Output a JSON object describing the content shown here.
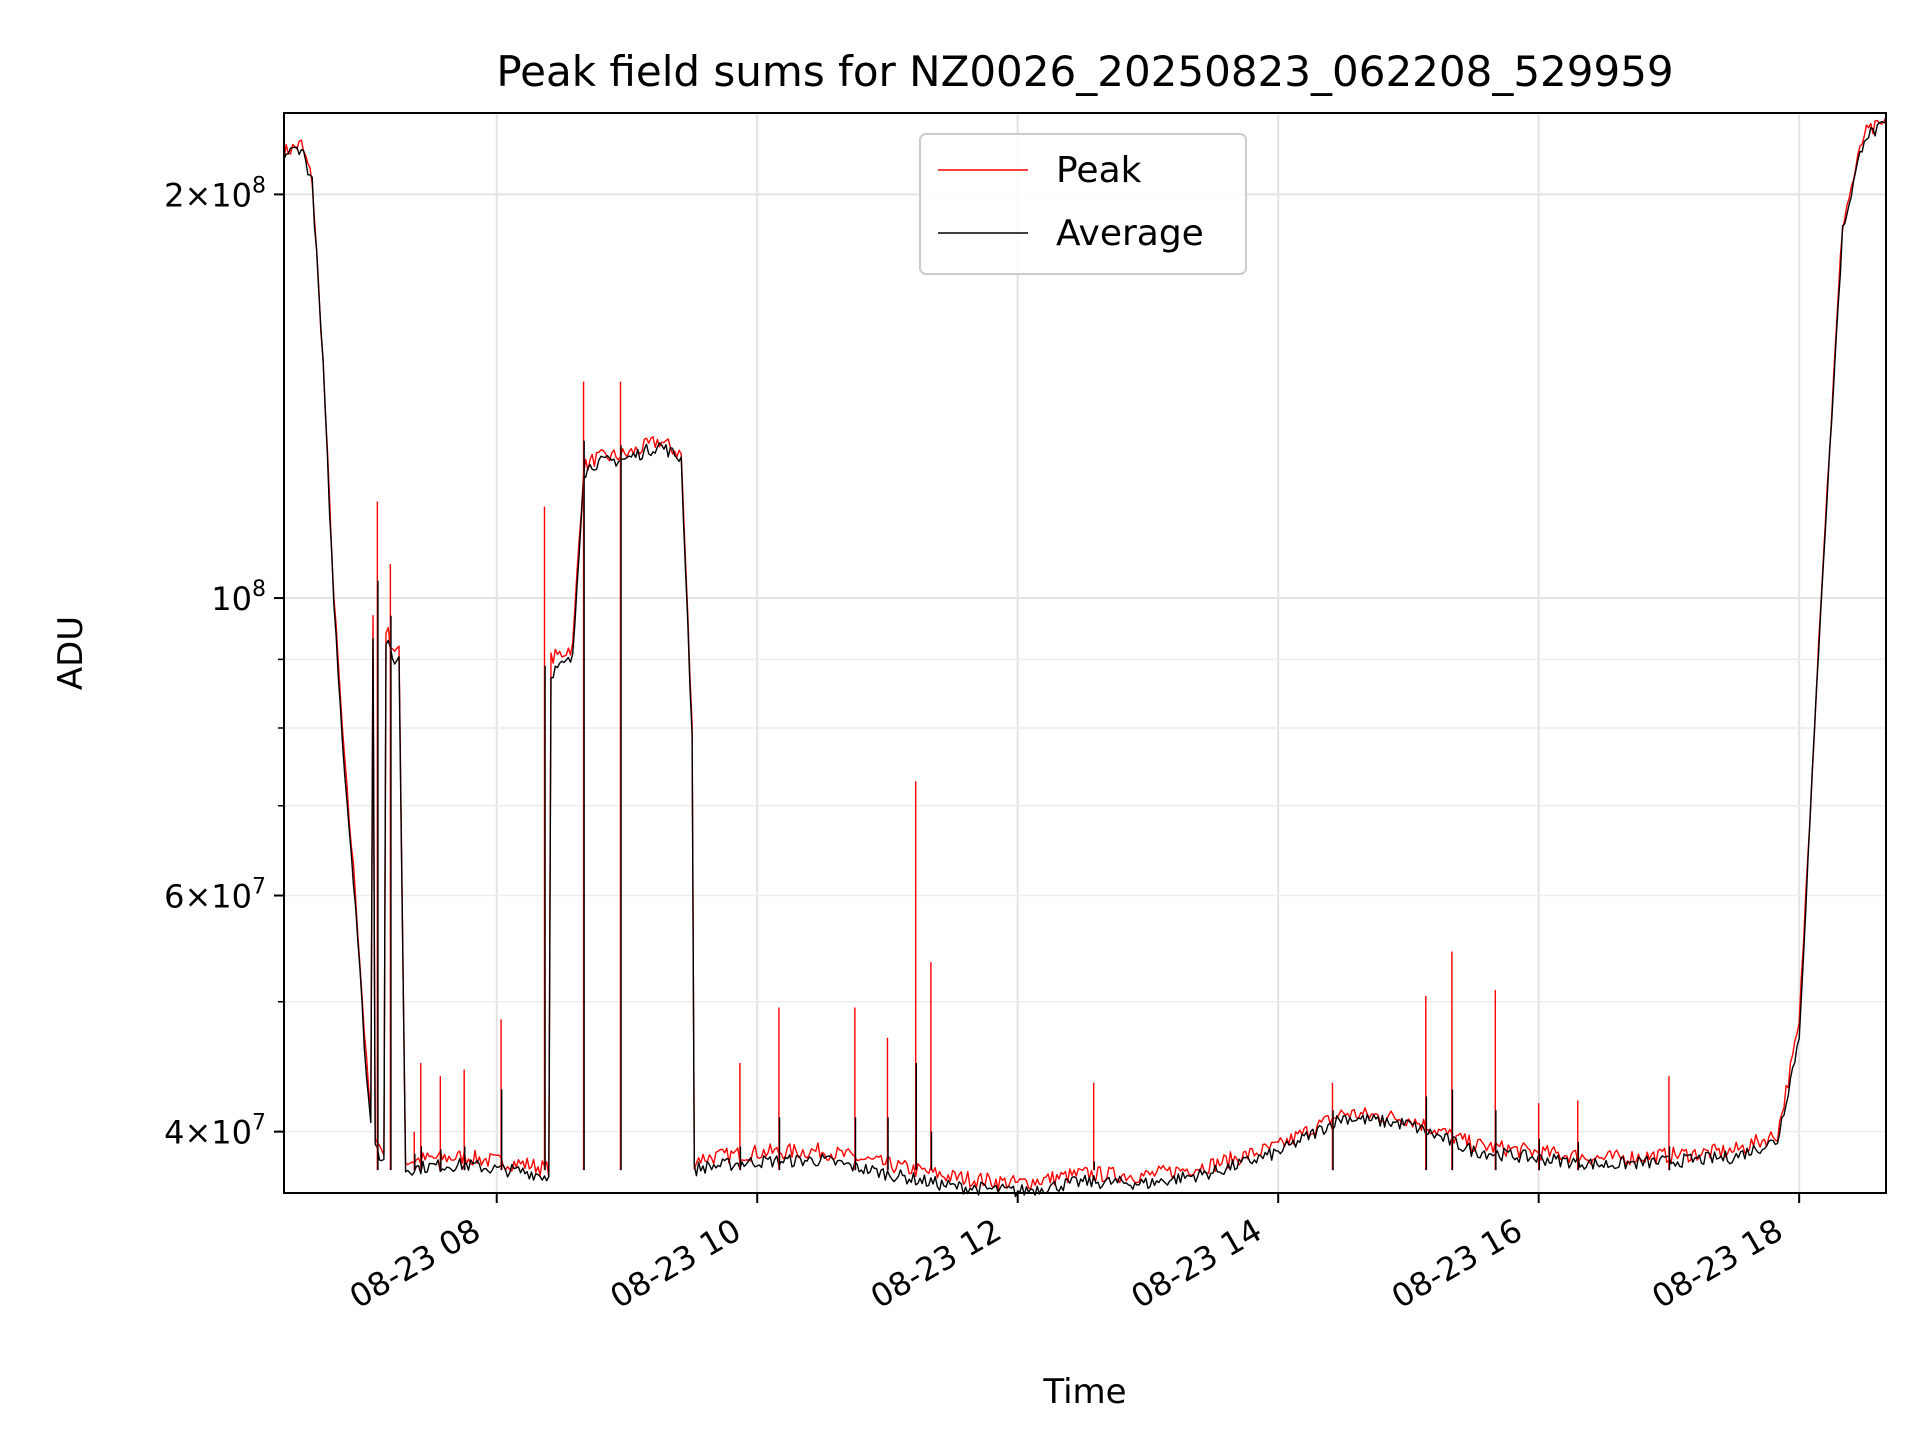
{
  "chart_data": {
    "type": "line",
    "title": "Peak field sums for NZ0026_20250823_062208_529959",
    "xlabel": "Time",
    "ylabel": "ADU",
    "y_scale": "log",
    "grid": true,
    "legend_position": "top-center",
    "xlim": [
      "2025-08-23 06:22",
      "2025-08-23 18:40"
    ],
    "ylim": [
      36000000,
      230000000
    ],
    "x_ticks": [
      {
        "t": "2025-08-23 08:00",
        "label": "08-23 08"
      },
      {
        "t": "2025-08-23 10:00",
        "label": "08-23 10"
      },
      {
        "t": "2025-08-23 12:00",
        "label": "08-23 12"
      },
      {
        "t": "2025-08-23 14:00",
        "label": "08-23 14"
      },
      {
        "t": "2025-08-23 16:00",
        "label": "08-23 16"
      },
      {
        "t": "2025-08-23 18:00",
        "label": "08-23 18"
      }
    ],
    "y_ticks": [
      {
        "value": 40000000,
        "mantissa": "4",
        "base": "10",
        "exponent": "7"
      },
      {
        "value": 60000000,
        "mantissa": "6",
        "base": "10",
        "exponent": "7"
      },
      {
        "value": 100000000,
        "mantissa": "",
        "base": "10",
        "exponent": "8"
      },
      {
        "value": 200000000,
        "mantissa": "2",
        "base": "10",
        "exponent": "8"
      }
    ],
    "series": [
      {
        "name": "Peak",
        "color": "#ff0000",
        "x": [
          "2025-08-23 06:22",
          "2025-08-23 06:30",
          "2025-08-23 06:35",
          "2025-08-23 06:40",
          "2025-08-23 06:45",
          "2025-08-23 06:50",
          "2025-08-23 06:55",
          "2025-08-23 07:00",
          "2025-08-23 07:02",
          "2025-08-23 07:03",
          "2025-08-23 07:04",
          "2025-08-23 07:06",
          "2025-08-23 07:08",
          "2025-08-23 07:09",
          "2025-08-23 07:12",
          "2025-08-23 07:15",
          "2025-08-23 07:18",
          "2025-08-23 07:30",
          "2025-08-23 07:45",
          "2025-08-23 08:00",
          "2025-08-23 08:15",
          "2025-08-23 08:24",
          "2025-08-23 08:25",
          "2025-08-23 08:35",
          "2025-08-23 08:40",
          "2025-08-23 08:45",
          "2025-08-23 09:00",
          "2025-08-23 09:15",
          "2025-08-23 09:25",
          "2025-08-23 09:30",
          "2025-08-23 09:31",
          "2025-08-23 09:33",
          "2025-08-23 10:00",
          "2025-08-23 10:30",
          "2025-08-23 11:00",
          "2025-08-23 11:30",
          "2025-08-23 12:00",
          "2025-08-23 12:30",
          "2025-08-23 13:00",
          "2025-08-23 13:30",
          "2025-08-23 14:00",
          "2025-08-23 14:30",
          "2025-08-23 15:00",
          "2025-08-23 15:30",
          "2025-08-23 16:00",
          "2025-08-23 16:30",
          "2025-08-23 17:00",
          "2025-08-23 17:30",
          "2025-08-23 17:50",
          "2025-08-23 18:00",
          "2025-08-23 18:10",
          "2025-08-23 18:20",
          "2025-08-23 18:30",
          "2025-08-23 18:40"
        ],
        "y": [
          215000000,
          218000000,
          205000000,
          150000000,
          100000000,
          75000000,
          60000000,
          45000000,
          41000000,
          96000000,
          40000000,
          39000000,
          38500000,
          95000000,
          92000000,
          91000000,
          38000000,
          38200000,
          38300000,
          38000000,
          37800000,
          37500000,
          90000000,
          92000000,
          125000000,
          127000000,
          128000000,
          131000000,
          128000000,
          80000000,
          38000000,
          38200000,
          38600000,
          38700000,
          37800000,
          37000000,
          36600000,
          37200000,
          37100000,
          37800000,
          39000000,
          41300000,
          40900000,
          39100000,
          38600000,
          38200000,
          38400000,
          38700000,
          39800000,
          48000000,
          100000000,
          190000000,
          222000000,
          226000000
        ]
      },
      {
        "name": "Average",
        "color": "#000000",
        "x": [
          "2025-08-23 06:22",
          "2025-08-23 06:30",
          "2025-08-23 06:35",
          "2025-08-23 06:40",
          "2025-08-23 06:45",
          "2025-08-23 06:50",
          "2025-08-23 06:55",
          "2025-08-23 07:00",
          "2025-08-23 07:02",
          "2025-08-23 07:03",
          "2025-08-23 07:04",
          "2025-08-23 07:06",
          "2025-08-23 07:08",
          "2025-08-23 07:09",
          "2025-08-23 07:12",
          "2025-08-23 07:15",
          "2025-08-23 07:18",
          "2025-08-23 07:30",
          "2025-08-23 07:45",
          "2025-08-23 08:00",
          "2025-08-23 08:15",
          "2025-08-23 08:24",
          "2025-08-23 08:25",
          "2025-08-23 08:35",
          "2025-08-23 08:40",
          "2025-08-23 08:45",
          "2025-08-23 09:00",
          "2025-08-23 09:15",
          "2025-08-23 09:25",
          "2025-08-23 09:30",
          "2025-08-23 09:31",
          "2025-08-23 09:33",
          "2025-08-23 10:00",
          "2025-08-23 10:30",
          "2025-08-23 11:00",
          "2025-08-23 11:30",
          "2025-08-23 12:00",
          "2025-08-23 12:30",
          "2025-08-23 13:00",
          "2025-08-23 13:30",
          "2025-08-23 14:00",
          "2025-08-23 14:30",
          "2025-08-23 15:00",
          "2025-08-23 15:30",
          "2025-08-23 16:00",
          "2025-08-23 16:30",
          "2025-08-23 17:00",
          "2025-08-23 17:30",
          "2025-08-23 17:50",
          "2025-08-23 18:00",
          "2025-08-23 18:10",
          "2025-08-23 18:20",
          "2025-08-23 18:30",
          "2025-08-23 18:40"
        ],
        "y": [
          214000000,
          217000000,
          204000000,
          149000000,
          99000000,
          74000000,
          59000000,
          44000000,
          40500000,
          94000000,
          39500000,
          38500000,
          38000000,
          93000000,
          90000000,
          90000000,
          37500000,
          37700000,
          37800000,
          37500000,
          37300000,
          37000000,
          88000000,
          90000000,
          124000000,
          126000000,
          127000000,
          130000000,
          127000000,
          79000000,
          37400000,
          37600000,
          38000000,
          38100000,
          37200000,
          36400000,
          36100000,
          36700000,
          36600000,
          37300000,
          38600000,
          41000000,
          40500000,
          38700000,
          38200000,
          37800000,
          38000000,
          38300000,
          39400000,
          47000000,
          99000000,
          188000000,
          221000000,
          225000000
        ]
      }
    ],
    "peak_spikes": [
      {
        "t": "2025-08-23 07:05",
        "peak": 118000000,
        "avg": 103000000
      },
      {
        "t": "2025-08-23 07:11",
        "peak": 106000000,
        "avg": 97000000
      },
      {
        "t": "2025-08-23 07:22",
        "peak": 40000000,
        "avg": 38500000
      },
      {
        "t": "2025-08-23 07:25",
        "peak": 45000000,
        "avg": 39000000
      },
      {
        "t": "2025-08-23 07:34",
        "peak": 44000000,
        "avg": 38800000
      },
      {
        "t": "2025-08-23 07:45",
        "peak": 44500000,
        "avg": 39000000
      },
      {
        "t": "2025-08-23 08:02",
        "peak": 48500000,
        "avg": 43000000
      },
      {
        "t": "2025-08-23 08:22",
        "peak": 117000000,
        "avg": 89000000
      },
      {
        "t": "2025-08-23 08:40",
        "peak": 145000000,
        "avg": 131000000
      },
      {
        "t": "2025-08-23 08:57",
        "peak": 145000000,
        "avg": 130000000
      },
      {
        "t": "2025-08-23 09:52",
        "peak": 45000000,
        "avg": 39000000
      },
      {
        "t": "2025-08-23 10:10",
        "peak": 49500000,
        "avg": 41000000
      },
      {
        "t": "2025-08-23 10:45",
        "peak": 49500000,
        "avg": 41000000
      },
      {
        "t": "2025-08-23 11:00",
        "peak": 47000000,
        "avg": 41000000
      },
      {
        "t": "2025-08-23 11:13",
        "peak": 73000000,
        "avg": 45000000
      },
      {
        "t": "2025-08-23 11:20",
        "peak": 53500000,
        "avg": 40000000
      },
      {
        "t": "2025-08-23 12:35",
        "peak": 43500000,
        "avg": 38000000
      },
      {
        "t": "2025-08-23 14:25",
        "peak": 43500000,
        "avg": 41500000
      },
      {
        "t": "2025-08-23 15:08",
        "peak": 50500000,
        "avg": 42500000
      },
      {
        "t": "2025-08-23 15:20",
        "peak": 54500000,
        "avg": 43000000
      },
      {
        "t": "2025-08-23 15:40",
        "peak": 51000000,
        "avg": 41500000
      },
      {
        "t": "2025-08-23 16:00",
        "peak": 42000000,
        "avg": 39500000
      },
      {
        "t": "2025-08-23 16:18",
        "peak": 42200000,
        "avg": 39300000
      },
      {
        "t": "2025-08-23 17:00",
        "peak": 44000000,
        "avg": 39000000
      }
    ]
  }
}
